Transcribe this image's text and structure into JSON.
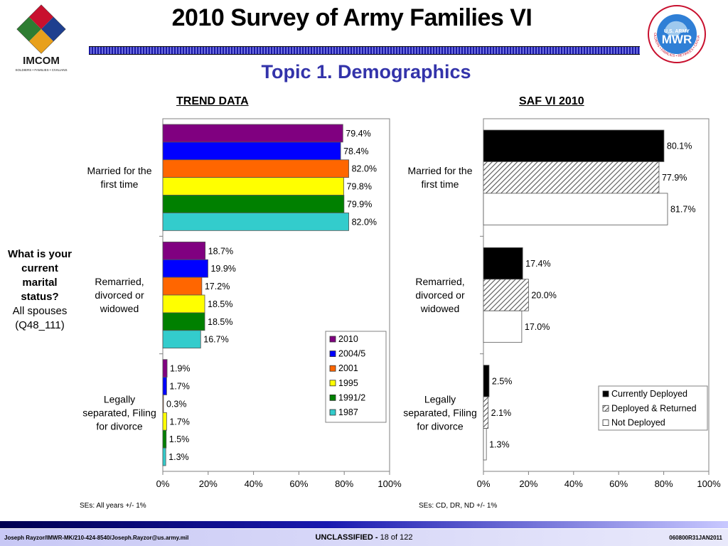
{
  "header": {
    "title": "2010 Survey of Army Families VI",
    "subtitle": "Topic 1. Demographics",
    "logo_left_text": "IMCOM",
    "logo_left_tagline": "SOLDIERS • FAMILIES • CIVILIANS",
    "logo_right_top": "U.S. ARMY",
    "logo_right_text": "MWR",
    "logo_right_ring": "SOLDIERS • FAMILIES • RETIREES • CIVILIANS"
  },
  "question": {
    "line_bold": "What is your current marital status?",
    "line_normal": "All spouses (Q48_111)"
  },
  "notes": {
    "left": "SEs: All years +/- 1%",
    "right": "SEs: CD, DR, ND +/- 1%"
  },
  "footer": {
    "left": "Joseph Rayzor/IMWR-MK/210-424-8540/Joseph.Rayzor@us.army.mil",
    "classification": "UNCLASSIFIED -",
    "page": "18 of 122",
    "right": "060800R31JAN2011"
  },
  "chart_data": [
    {
      "type": "bar",
      "orientation": "horizontal",
      "title": "TREND DATA",
      "categories": [
        "Married for the first time",
        "Remarried, divorced or widowed",
        "Legally separated, Filing for divorce"
      ],
      "series": [
        {
          "name": "2010",
          "values": [
            79.4,
            18.7,
            1.9
          ],
          "labels": [
            "79.4%",
            "18.7%",
            "1.9%"
          ],
          "color": "#800080"
        },
        {
          "name": "2004/5",
          "values": [
            78.4,
            19.9,
            1.7
          ],
          "labels": [
            "78.4%",
            "19.9%",
            "1.7%"
          ],
          "color": "#0000ff"
        },
        {
          "name": "2001",
          "values": [
            82.0,
            17.2,
            0.3
          ],
          "labels": [
            "82.0%",
            "17.2%",
            "0.3%"
          ],
          "color": "#ff6600"
        },
        {
          "name": "1995",
          "values": [
            79.8,
            18.5,
            1.7
          ],
          "labels": [
            "79.8%",
            "18.5%",
            "1.7%"
          ],
          "color": "#ffff00"
        },
        {
          "name": "1991/2",
          "values": [
            79.9,
            18.5,
            1.5
          ],
          "labels": [
            "79.9%",
            "18.5%",
            "1.5%"
          ],
          "color": "#008000"
        },
        {
          "name": "1987",
          "values": [
            82.0,
            16.7,
            1.3
          ],
          "labels": [
            "82.0%",
            "16.7%",
            "1.3%"
          ],
          "color": "#33cccc"
        }
      ],
      "xlim": [
        0,
        100
      ],
      "xticks": [
        "0%",
        "20%",
        "40%",
        "60%",
        "80%",
        "100%"
      ],
      "legend_position": "lower-right"
    },
    {
      "type": "bar",
      "orientation": "horizontal",
      "title": "SAF VI 2010",
      "categories": [
        "Married for the first time",
        "Remarried, divorced or widowed",
        "Legally separated, Filing for divorce"
      ],
      "series": [
        {
          "name": "Currently Deployed",
          "values": [
            80.1,
            17.4,
            2.5
          ],
          "labels": [
            "80.1%",
            "17.4%",
            "2.5%"
          ],
          "fill": "solid",
          "color": "#000000"
        },
        {
          "name": "Deployed & Returned",
          "values": [
            77.9,
            20.0,
            2.1
          ],
          "labels": [
            "77.9%",
            "20.0%",
            "2.1%"
          ],
          "fill": "hatched",
          "color": "#555555"
        },
        {
          "name": "Not Deployed",
          "values": [
            81.7,
            17.0,
            1.3
          ],
          "labels": [
            "81.7%",
            "17.0%",
            "1.3%"
          ],
          "fill": "none",
          "color": "#ffffff"
        }
      ],
      "xlim": [
        0,
        100
      ],
      "xticks": [
        "0%",
        "20%",
        "40%",
        "60%",
        "80%",
        "100%"
      ],
      "legend_position": "lower-right"
    }
  ]
}
